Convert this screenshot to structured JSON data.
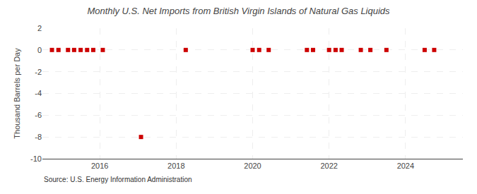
{
  "chart_data": {
    "type": "scatter",
    "title": "Monthly U.S. Net Imports from British Virgin Islands of Natural Gas Liquids",
    "y_label": "Thousand Barrels per Day",
    "annotations": [
      "Source: U.S. Energy Information Administration"
    ],
    "x": [
      2014.75,
      2014.92,
      2015.17,
      2015.33,
      2015.5,
      2015.67,
      2015.83,
      2016.08,
      2017.08,
      2018.25,
      2020.0,
      2020.17,
      2020.42,
      2021.42,
      2021.58,
      2022.0,
      2022.17,
      2022.33,
      2022.83,
      2023.08,
      2023.5,
      2024.5,
      2024.75
    ],
    "values": [
      0,
      0,
      0,
      0,
      0,
      0,
      0,
      0,
      -8,
      0,
      0,
      0,
      0,
      0,
      0,
      0,
      0,
      0,
      0,
      0,
      0,
      0,
      0
    ],
    "color": "#cc0000",
    "marker": "square",
    "xlim": [
      2014.5,
      2025.5
    ],
    "xticks": [
      2016,
      2018,
      2020,
      2022,
      2024
    ],
    "ylim": [
      -10,
      2
    ],
    "yticks": [
      -10,
      -8,
      -6,
      -4,
      -2,
      0,
      2
    ],
    "grid": true
  }
}
